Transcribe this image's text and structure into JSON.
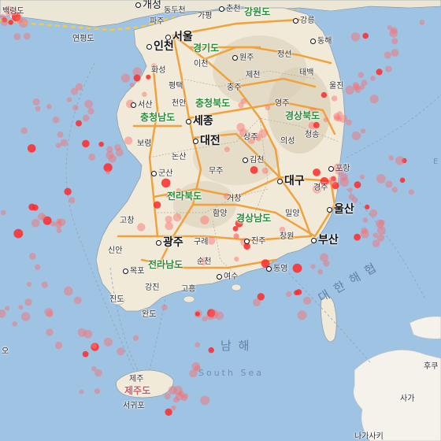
{
  "map": {
    "sea_labels": {
      "south_sea_ko": "남 해",
      "south_sea_en": "South Sea",
      "korea_strait": "대 한 해 협"
    },
    "provinces": {
      "gangwon": "강원도",
      "gyeonggi": "경기도",
      "chungbuk": "충청북도",
      "chungnam": "충청남도",
      "gyeongbuk": "경상북도",
      "jeonbuk": "전라북도",
      "gyeongnam": "경상남도",
      "jeonnam": "전라남도",
      "jeju": "제주도"
    },
    "major_cities": {
      "seoul": "서울",
      "incheon": "인천",
      "sejong": "세종",
      "daejeon": "대전",
      "daegu": "대구",
      "ulsan": "울산",
      "busan": "부산",
      "gwangju": "광주"
    },
    "cities": {
      "gaeseong": "개성",
      "baengnyeongdo": "백령도",
      "yeonpyeongdo": "연평도",
      "paju": "파주",
      "dongducheon": "동두천",
      "gapyeong": "가평",
      "chuncheon": "춘천",
      "gangneung": "강릉",
      "donghae": "동해",
      "wonju": "원주",
      "icheon": "이천",
      "hwaseong": "화성",
      "pyeongtaek": "평택",
      "jecheon": "제천",
      "jeongseon": "정선",
      "taebaek": "태백",
      "chungju": "충주",
      "cheonan": "천안",
      "seosan": "서산",
      "yeongju": "영주",
      "uljin": "울진",
      "boryeong": "보령",
      "sangju": "상주",
      "uiseong": "의성",
      "cheongsong": "청송",
      "nonsan": "논산",
      "gunsan": "군산",
      "muju": "무주",
      "gimcheon": "김천",
      "pohang": "포항",
      "gyeongju": "경주",
      "geochang": "거창",
      "miryang": "밀양",
      "gochang": "고창",
      "hamyang": "함양",
      "changwon": "창원",
      "jinju": "진주",
      "gurye": "구례",
      "sinan": "신안",
      "suncheon": "순천",
      "mokpo": "목포",
      "tongyeong": "통영",
      "yeosu": "여수",
      "gangjin": "강진",
      "goheung": "고흥",
      "jindo": "진도",
      "wando": "완도",
      "jeju_city": "제주",
      "seogwipo": "서귀포",
      "tsushima_upper": "후쿠",
      "tsushima_mid": "사가",
      "tsushima_low": "나가사키",
      "coast_w": "오",
      "coast_e": "E"
    }
  }
}
